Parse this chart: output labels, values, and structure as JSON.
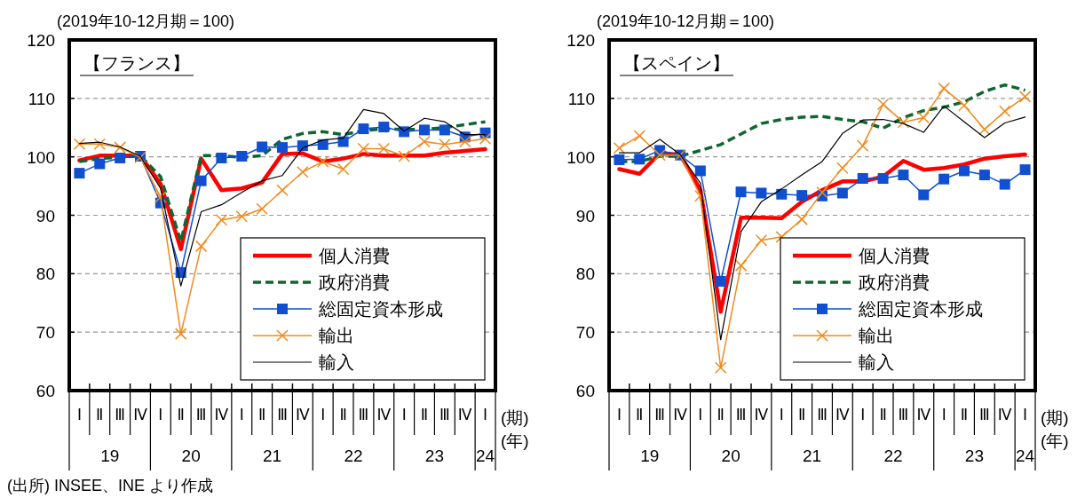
{
  "chart_data": [
    {
      "type": "line",
      "title": "【フランス】",
      "subtitle": "(2019年10-12月期＝100)",
      "categories": [
        "Ⅰ",
        "Ⅱ",
        "Ⅲ",
        "Ⅳ",
        "Ⅰ",
        "Ⅱ",
        "Ⅲ",
        "Ⅳ",
        "Ⅰ",
        "Ⅱ",
        "Ⅲ",
        "Ⅳ",
        "Ⅰ",
        "Ⅱ",
        "Ⅲ",
        "Ⅳ",
        "Ⅰ",
        "Ⅱ",
        "Ⅲ",
        "Ⅳ",
        "Ⅰ"
      ],
      "ylim": [
        60,
        120
      ],
      "yticks": [
        60,
        70,
        80,
        90,
        100,
        110,
        120
      ],
      "grid": "y",
      "legend": "bottom right",
      "annotations": [
        "(期)",
        "(年)",
        "19",
        "20",
        "21",
        "22",
        "23",
        "24",
        "(出所) INSEE、INE より作成"
      ],
      "series": [
        {
          "name": "個人消費",
          "color": "#ff0000",
          "values": [
            99.4,
            100.2,
            100.2,
            100.2,
            95.4,
            84.2,
            99.7,
            94.3,
            94.6,
            95.6,
            100.5,
            100.6,
            99.2,
            99.7,
            100.5,
            100.2,
            100.2,
            100.2,
            100.7,
            101.0,
            101.3
          ]
        },
        {
          "name": "政府消費",
          "color": "#0e6630",
          "line_style": "dashed",
          "values": [
            99.2,
            99.7,
            99.9,
            100.2,
            96.6,
            85.5,
            100.2,
            100.2,
            99.9,
            100.2,
            103.0,
            104.0,
            104.3,
            103.8,
            104.5,
            104.8,
            104.7,
            104.7,
            105.0,
            105.5,
            106.0
          ]
        },
        {
          "name": "総固定資本形成",
          "color": "#0f4fd0",
          "marker": "square",
          "values": [
            97.2,
            98.8,
            99.8,
            100.1,
            92.1,
            80.2,
            95.9,
            99.8,
            100.1,
            101.7,
            101.6,
            101.9,
            102.1,
            102.6,
            104.8,
            105.1,
            104.3,
            104.6,
            104.6,
            103.4,
            104.1
          ]
        },
        {
          "name": "輸出",
          "color": "#f08a1c",
          "marker": "cross",
          "values": [
            102.2,
            102.2,
            101.6,
            99.9,
            93.1,
            69.7,
            84.7,
            89.2,
            89.8,
            91.1,
            94.3,
            97.4,
            99.2,
            97.9,
            101.4,
            101.4,
            100.1,
            102.6,
            102.1,
            102.6,
            103.1
          ]
        },
        {
          "name": "輸入",
          "color": "#000000",
          "values": [
            102.3,
            102.5,
            101.7,
            100.1,
            94.6,
            77.9,
            90.6,
            91.8,
            93.9,
            95.9,
            96.8,
            101.5,
            102.9,
            103.2,
            108.1,
            107.4,
            104.4,
            106.6,
            106.0,
            103.8,
            103.8
          ]
        }
      ]
    },
    {
      "type": "line",
      "title": "【スペイン】",
      "subtitle": "(2019年10-12月期＝100)",
      "categories": [
        "Ⅰ",
        "Ⅱ",
        "Ⅲ",
        "Ⅳ",
        "Ⅰ",
        "Ⅱ",
        "Ⅲ",
        "Ⅳ",
        "Ⅰ",
        "Ⅱ",
        "Ⅲ",
        "Ⅳ",
        "Ⅰ",
        "Ⅱ",
        "Ⅲ",
        "Ⅳ",
        "Ⅰ",
        "Ⅱ",
        "Ⅲ",
        "Ⅳ",
        "Ⅰ"
      ],
      "ylim": [
        60,
        120
      ],
      "yticks": [
        60,
        70,
        80,
        90,
        100,
        110,
        120
      ],
      "grid": "y",
      "legend": "bottom right",
      "annotations": [
        "(期)",
        "(年)",
        "19",
        "20",
        "21",
        "22",
        "23",
        "24"
      ],
      "series": [
        {
          "name": "個人消費",
          "color": "#ff0000",
          "values": [
            97.9,
            97.1,
            100.6,
            100.4,
            94.3,
            73.5,
            89.6,
            89.6,
            89.5,
            92.3,
            94.3,
            95.8,
            95.8,
            96.6,
            99.3,
            97.8,
            98.1,
            98.7,
            99.7,
            100.1,
            100.4
          ]
        },
        {
          "name": "政府消費",
          "color": "#0e6630",
          "line_style": "dashed",
          "values": [
            99.2,
            99.2,
            100.1,
            100.1,
            101.1,
            102.1,
            103.9,
            105.7,
            106.4,
            106.8,
            106.9,
            106.4,
            106.0,
            104.9,
            106.7,
            107.9,
            108.5,
            109.4,
            111.2,
            112.3,
            111.4
          ]
        },
        {
          "name": "総固定資本形成",
          "color": "#0f4fd0",
          "marker": "square",
          "values": [
            99.5,
            99.6,
            101.1,
            100.3,
            97.6,
            78.7,
            94.0,
            93.8,
            93.6,
            93.4,
            93.3,
            93.8,
            96.3,
            96.3,
            96.9,
            93.5,
            96.2,
            97.6,
            96.9,
            95.3,
            97.8
          ]
        },
        {
          "name": "輸出",
          "color": "#f08a1c",
          "marker": "cross",
          "values": [
            101.5,
            103.6,
            100.3,
            100.3,
            93.3,
            63.9,
            81.4,
            85.7,
            86.3,
            89.3,
            93.9,
            98.1,
            101.9,
            109.0,
            105.9,
            106.7,
            111.7,
            108.8,
            104.7,
            107.8,
            110.3
          ]
        },
        {
          "name": "輸入",
          "color": "#000000",
          "values": [
            100.7,
            100.7,
            103.0,
            100.4,
            95.5,
            68.7,
            87.2,
            92.3,
            94.5,
            96.9,
            99.2,
            104.0,
            106.3,
            106.4,
            105.7,
            104.2,
            108.7,
            106.0,
            103.3,
            105.8,
            106.8
          ]
        }
      ]
    }
  ]
}
